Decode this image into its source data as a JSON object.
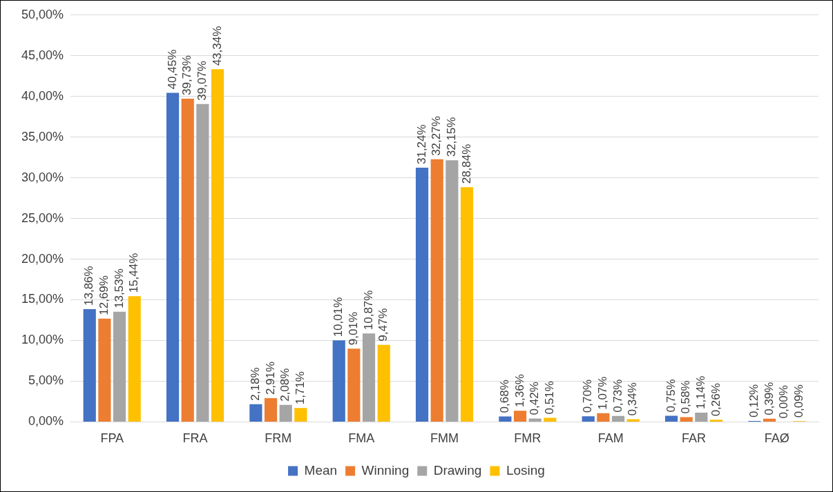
{
  "chart_data": {
    "type": "bar",
    "categories": [
      "FPA",
      "FRA",
      "FRM",
      "FMA",
      "FMM",
      "FMR",
      "FAM",
      "FAR",
      "FAØ"
    ],
    "series": [
      {
        "name": "Mean",
        "color": "#4472c4",
        "values": [
          13.86,
          40.45,
          2.18,
          10.01,
          31.24,
          0.68,
          0.7,
          0.75,
          0.12
        ],
        "value_labels": [
          "13,86%",
          "40,45%",
          "2,18%",
          "10,01%",
          "31,24%",
          "0,68%",
          "0,70%",
          "0,75%",
          "0,12%"
        ]
      },
      {
        "name": "Winning",
        "color": "#ed7d31",
        "values": [
          12.69,
          39.73,
          2.91,
          9.01,
          32.27,
          1.36,
          1.07,
          0.58,
          0.39
        ],
        "value_labels": [
          "12,69%",
          "39,73%",
          "2,91%",
          "9,01%",
          "32,27%",
          "1,36%",
          "1,07%",
          "0,58%",
          "0,39%"
        ]
      },
      {
        "name": "Drawing",
        "color": "#a5a5a5",
        "values": [
          13.53,
          39.07,
          2.08,
          10.87,
          32.15,
          0.42,
          0.73,
          1.14,
          0.0
        ],
        "value_labels": [
          "13,53%",
          "39,07%",
          "2,08%",
          "10,87%",
          "32,15%",
          "0,42%",
          "0,73%",
          "1,14%",
          "0,00%"
        ]
      },
      {
        "name": "Losing",
        "color": "#ffc000",
        "values": [
          15.44,
          43.34,
          1.71,
          9.47,
          28.84,
          0.51,
          0.34,
          0.26,
          0.09
        ],
        "value_labels": [
          "15,44%",
          "43,34%",
          "1,71%",
          "9,47%",
          "28,84%",
          "0,51%",
          "0,34%",
          "0,26%",
          "0,09%"
        ]
      }
    ],
    "ylim": [
      0,
      50
    ],
    "yticks": [
      {
        "value": 0,
        "label": "0,00%"
      },
      {
        "value": 5,
        "label": "5,00%"
      },
      {
        "value": 10,
        "label": "10,00%"
      },
      {
        "value": 15,
        "label": "15,00%"
      },
      {
        "value": 20,
        "label": "20,00%"
      },
      {
        "value": 25,
        "label": "25,00%"
      },
      {
        "value": 30,
        "label": "30,00%"
      },
      {
        "value": 35,
        "label": "35,00%"
      },
      {
        "value": 40,
        "label": "40,00%"
      },
      {
        "value": 45,
        "label": "45,00%"
      },
      {
        "value": 50,
        "label": "50,00%"
      }
    ],
    "grid": "y",
    "legend": "bottom"
  }
}
